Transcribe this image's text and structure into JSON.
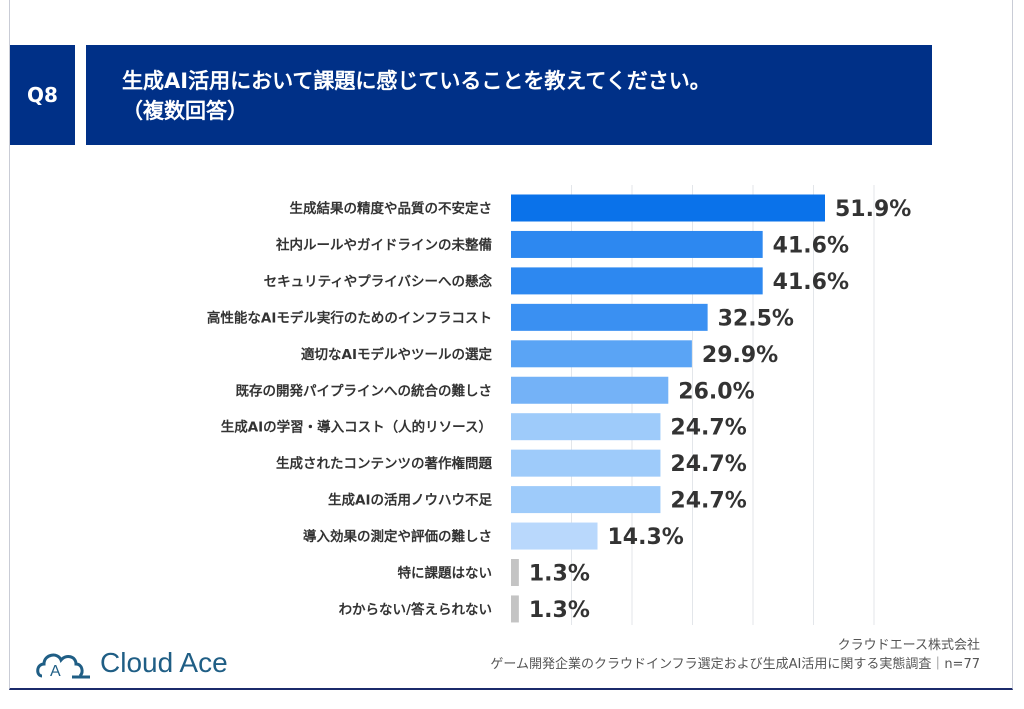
{
  "question": {
    "number": "Q8",
    "line1": "生成AI活用において課題に感じていることを教えてください。",
    "line2": "（複数回答）"
  },
  "colors": {
    "header": "#003087",
    "bar_top": "#0a72ea",
    "bar_light": "#b9d8fc",
    "bar_other": "#c4c4c4"
  },
  "chart_data": {
    "type": "bar",
    "orientation": "horizontal",
    "xlim": [
      0,
      60
    ],
    "grid": true,
    "gridlines": [
      10,
      20,
      30,
      40,
      50,
      60
    ],
    "categories": [
      "生成結果の精度や品質の不安定さ",
      "社内ルールやガイドラインの未整備",
      "セキュリティやプライバシーへの懸念",
      "高性能なAIモデル実行のためのインフラコスト",
      "適切なAIモデルやツールの選定",
      "既存の開発パイプラインへの統合の難しさ",
      "生成AIの学習・導入コスト（人的リソース）",
      "生成されたコンテンツの著作権問題",
      "生成AIの活用ノウハウ不足",
      "導入効果の測定や評価の難しさ",
      "特に課題はない",
      "わからない/答えられない"
    ],
    "values": [
      51.9,
      41.6,
      41.6,
      32.5,
      29.9,
      26.0,
      24.7,
      24.7,
      24.7,
      14.3,
      1.3,
      1.3
    ],
    "labels": [
      "51.9%",
      "41.6%",
      "41.6%",
      "32.5%",
      "29.9%",
      "26.0%",
      "24.7%",
      "24.7%",
      "24.7%",
      "14.3%",
      "1.3%",
      "1.3%"
    ],
    "bar_colors": [
      "#0a72ea",
      "#2d88f0",
      "#2d88f0",
      "#3a90f2",
      "#5aa4f5",
      "#74b2f7",
      "#9ecbfa",
      "#9ecbfa",
      "#9ecbfa",
      "#b9d8fc",
      "#c4c4c4",
      "#c4c4c4"
    ]
  },
  "footer": {
    "company": "クラウドエース株式会社",
    "survey": "ゲーム開発企業のクラウドインフラ選定および生成AI活用に関する実態調査｜n=77",
    "logo": "Cloud Ace"
  }
}
